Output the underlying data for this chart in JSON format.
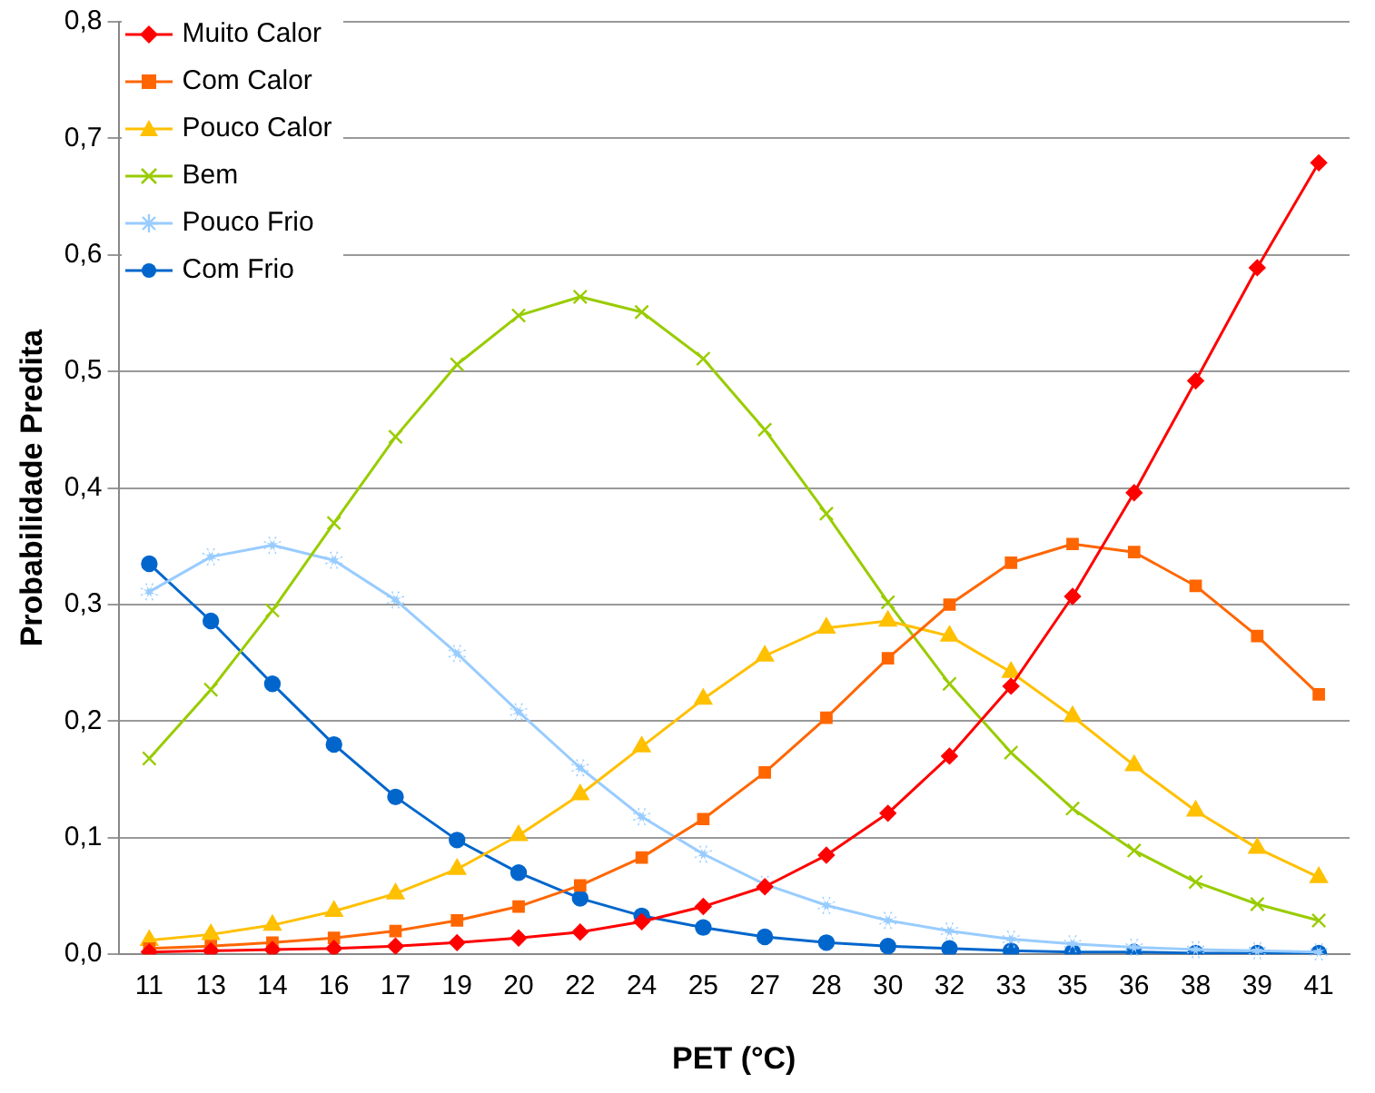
{
  "chart_data": {
    "type": "line",
    "xlabel": "PET (°C)",
    "ylabel": "Probabilidade Predita",
    "categories": [
      "11",
      "13",
      "14",
      "16",
      "17",
      "19",
      "20",
      "22",
      "24",
      "25",
      "27",
      "28",
      "30",
      "32",
      "33",
      "35",
      "36",
      "38",
      "39",
      "41"
    ],
    "ylim": [
      0,
      0.8
    ],
    "yticks": [
      {
        "value": 0,
        "label": "0,0"
      },
      {
        "value": 0.1,
        "label": "0,1"
      },
      {
        "value": 0.2,
        "label": "0,2"
      },
      {
        "value": 0.3,
        "label": "0,3"
      },
      {
        "value": 0.4,
        "label": "0,4"
      },
      {
        "value": 0.5,
        "label": "0,5"
      },
      {
        "value": 0.6,
        "label": "0,6"
      },
      {
        "value": 0.7,
        "label": "0,7"
      },
      {
        "value": 0.8,
        "label": "0,8"
      }
    ],
    "grid": "y",
    "legend": "top left",
    "line_style": "solid",
    "series": [
      {
        "name": "Muito Calor",
        "color": "#ff0000",
        "marker": "diamond",
        "values": [
          0.002,
          0.003,
          0.004,
          0.005,
          0.007,
          0.01,
          0.014,
          0.019,
          0.028,
          0.041,
          0.058,
          0.085,
          0.121,
          0.17,
          0.23,
          0.307,
          0.396,
          0.492,
          0.589,
          0.679
        ]
      },
      {
        "name": "Com Calor",
        "color": "#ff6600",
        "marker": "square",
        "values": [
          0.005,
          0.007,
          0.01,
          0.014,
          0.02,
          0.029,
          0.041,
          0.059,
          0.083,
          0.116,
          0.156,
          0.203,
          0.254,
          0.3,
          0.336,
          0.352,
          0.345,
          0.316,
          0.273,
          0.223
        ]
      },
      {
        "name": "Pouco Calor",
        "color": "#ffc000",
        "marker": "triangle",
        "values": [
          0.012,
          0.017,
          0.025,
          0.037,
          0.052,
          0.073,
          0.102,
          0.137,
          0.178,
          0.219,
          0.256,
          0.28,
          0.286,
          0.273,
          0.242,
          0.204,
          0.162,
          0.123,
          0.091,
          0.066
        ]
      },
      {
        "name": "Bem",
        "color": "#99cc00",
        "marker": "cross",
        "values": [
          0.168,
          0.227,
          0.295,
          0.37,
          0.444,
          0.506,
          0.548,
          0.564,
          0.551,
          0.511,
          0.45,
          0.378,
          0.302,
          0.232,
          0.173,
          0.125,
          0.089,
          0.062,
          0.043,
          0.029
        ]
      },
      {
        "name": "Pouco Frio",
        "color": "#99ccff",
        "marker": "star",
        "values": [
          0.311,
          0.341,
          0.351,
          0.338,
          0.304,
          0.258,
          0.208,
          0.16,
          0.118,
          0.086,
          0.06,
          0.042,
          0.029,
          0.02,
          0.013,
          0.009,
          0.006,
          0.004,
          0.003,
          0.002
        ]
      },
      {
        "name": "Com Frio",
        "color": "#0066cc",
        "marker": "circle",
        "values": [
          0.335,
          0.286,
          0.232,
          0.18,
          0.135,
          0.098,
          0.07,
          0.048,
          0.033,
          0.023,
          0.015,
          0.01,
          0.007,
          0.005,
          0.003,
          0.002,
          0.002,
          0.001,
          0.001,
          0.001
        ]
      }
    ]
  }
}
